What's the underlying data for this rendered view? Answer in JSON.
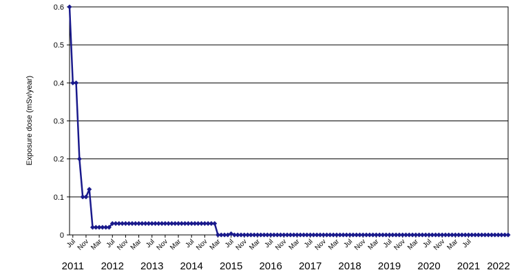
{
  "chart_data": {
    "type": "line",
    "title": "",
    "xlabel": "",
    "ylabel": "Exposure dose (mSv/year)",
    "ylim": [
      0,
      0.6
    ],
    "y_ticks": [
      "0",
      "0.1",
      "0.2",
      "0.3",
      "0.4",
      "0.5",
      "0.6"
    ],
    "grid": true,
    "legend": "none",
    "month_labels": [
      "Jul",
      "Nov",
      "Mar",
      "Jul",
      "Nov",
      "Mar",
      "Jul",
      "Nov",
      "Mar",
      "Jul",
      "Nov",
      "Mar",
      "Jul",
      "Nov",
      "Mar",
      "Jul",
      "Nov",
      "Mar",
      "Jul",
      "Nov",
      "Mar",
      "Jul",
      "Nov",
      "Mar",
      "Jul",
      "Nov",
      "Mar",
      "Jul",
      "Nov",
      "Mar",
      "Jul"
    ],
    "year_labels": [
      "2011",
      "2012",
      "2013",
      "2014",
      "2015",
      "2016",
      "2017",
      "2018",
      "2019",
      "2020",
      "2021",
      "2022"
    ],
    "series": [
      {
        "color": "#1a1a8c",
        "points": [
          [
            "2011-06",
            0.6
          ],
          [
            "2011-07",
            0.4
          ],
          [
            "2011-08",
            0.4
          ],
          [
            "2011-09",
            0.2
          ],
          [
            "2011-10",
            0.1
          ],
          [
            "2011-11",
            0.1
          ],
          [
            "2011-12",
            0.12
          ],
          [
            "2012-01",
            0.02
          ],
          [
            "2012-02",
            0.02
          ],
          [
            "2012-03",
            0.02
          ],
          [
            "2012-04",
            0.02
          ],
          [
            "2012-05",
            0.02
          ],
          [
            "2012-06",
            0.02
          ],
          [
            "2012-07",
            0.03
          ],
          [
            "2012-08",
            0.03
          ],
          [
            "2012-09",
            0.03
          ],
          [
            "2012-10",
            0.03
          ],
          [
            "2012-11",
            0.03
          ],
          [
            "2012-12",
            0.03
          ],
          [
            "2013-01",
            0.03
          ],
          [
            "2013-02",
            0.03
          ],
          [
            "2013-03",
            0.03
          ],
          [
            "2013-04",
            0.03
          ],
          [
            "2013-05",
            0.03
          ],
          [
            "2013-06",
            0.03
          ],
          [
            "2013-07",
            0.03
          ],
          [
            "2013-08",
            0.03
          ],
          [
            "2013-09",
            0.03
          ],
          [
            "2013-10",
            0.03
          ],
          [
            "2013-11",
            0.03
          ],
          [
            "2013-12",
            0.03
          ],
          [
            "2014-01",
            0.03
          ],
          [
            "2014-02",
            0.03
          ],
          [
            "2014-03",
            0.03
          ],
          [
            "2014-04",
            0.03
          ],
          [
            "2014-05",
            0.03
          ],
          [
            "2014-06",
            0.03
          ],
          [
            "2014-07",
            0.03
          ],
          [
            "2014-08",
            0.03
          ],
          [
            "2014-09",
            0.03
          ],
          [
            "2014-10",
            0.03
          ],
          [
            "2014-11",
            0.03
          ],
          [
            "2014-12",
            0.03
          ],
          [
            "2015-01",
            0.03
          ],
          [
            "2015-02",
            0.03
          ],
          [
            "2015-03",
            0.0
          ],
          [
            "2015-04",
            0.0
          ],
          [
            "2015-05",
            0.0
          ],
          [
            "2015-06",
            0.0
          ],
          [
            "2015-07",
            0.003
          ],
          [
            "2015-08",
            0.0
          ],
          [
            "2015-09",
            0.0
          ],
          [
            "2015-10",
            0.0
          ],
          [
            "2015-11",
            0.0
          ],
          [
            "2015-12",
            0.0
          ],
          [
            "2016-01",
            0.0
          ],
          [
            "2016-02",
            0.0
          ],
          [
            "2016-03",
            0.0
          ],
          [
            "2016-04",
            0.0
          ],
          [
            "2016-05",
            0.0
          ],
          [
            "2016-06",
            0.0
          ],
          [
            "2016-07",
            0.0
          ],
          [
            "2016-08",
            0.0
          ],
          [
            "2016-09",
            0.0
          ],
          [
            "2016-10",
            0.0
          ],
          [
            "2016-11",
            0.0
          ],
          [
            "2016-12",
            0.0
          ],
          [
            "2017-01",
            0.0
          ],
          [
            "2017-02",
            0.0
          ],
          [
            "2017-03",
            0.0
          ],
          [
            "2017-04",
            0.0
          ],
          [
            "2017-05",
            0.0
          ],
          [
            "2017-06",
            0.0
          ],
          [
            "2017-07",
            0.0
          ],
          [
            "2017-08",
            0.0
          ],
          [
            "2017-09",
            0.0
          ],
          [
            "2017-10",
            0.0
          ],
          [
            "2017-11",
            0.0
          ],
          [
            "2017-12",
            0.0
          ],
          [
            "2018-01",
            0.0
          ],
          [
            "2018-02",
            0.0
          ],
          [
            "2018-03",
            0.0
          ],
          [
            "2018-04",
            0.0
          ],
          [
            "2018-05",
            0.0
          ],
          [
            "2018-06",
            0.0
          ],
          [
            "2018-07",
            0.0
          ],
          [
            "2018-08",
            0.0
          ],
          [
            "2018-09",
            0.0
          ],
          [
            "2018-10",
            0.0
          ],
          [
            "2018-11",
            0.0
          ],
          [
            "2018-12",
            0.0
          ],
          [
            "2019-01",
            0.0
          ],
          [
            "2019-02",
            0.0
          ],
          [
            "2019-03",
            0.0
          ],
          [
            "2019-04",
            0.0
          ],
          [
            "2019-05",
            0.0
          ],
          [
            "2019-06",
            0.0
          ],
          [
            "2019-07",
            0.0
          ],
          [
            "2019-08",
            0.0
          ],
          [
            "2019-09",
            0.0
          ],
          [
            "2019-10",
            0.0
          ],
          [
            "2019-11",
            0.0
          ],
          [
            "2019-12",
            0.0
          ],
          [
            "2020-01",
            0.0
          ],
          [
            "2020-02",
            0.0
          ],
          [
            "2020-03",
            0.0
          ],
          [
            "2020-04",
            0.0
          ],
          [
            "2020-05",
            0.0
          ],
          [
            "2020-06",
            0.0
          ],
          [
            "2020-07",
            0.0
          ],
          [
            "2020-08",
            0.0
          ],
          [
            "2020-09",
            0.0
          ],
          [
            "2020-10",
            0.0
          ],
          [
            "2020-11",
            0.0
          ],
          [
            "2020-12",
            0.0
          ],
          [
            "2021-01",
            0.0
          ],
          [
            "2021-02",
            0.0
          ],
          [
            "2021-03",
            0.0
          ],
          [
            "2021-04",
            0.0
          ],
          [
            "2021-05",
            0.0
          ],
          [
            "2021-06",
            0.0
          ],
          [
            "2021-07",
            0.0
          ],
          [
            "2021-08",
            0.0
          ],
          [
            "2021-09",
            0.0
          ],
          [
            "2021-10",
            0.0
          ],
          [
            "2021-11",
            0.0
          ],
          [
            "2021-12",
            0.0
          ],
          [
            "2022-01",
            0.0
          ],
          [
            "2022-02",
            0.0
          ],
          [
            "2022-03",
            0.0
          ],
          [
            "2022-04",
            0.0
          ],
          [
            "2022-05",
            0.0
          ],
          [
            "2022-06",
            0.0
          ],
          [
            "2022-07",
            0.0
          ]
        ]
      }
    ]
  }
}
